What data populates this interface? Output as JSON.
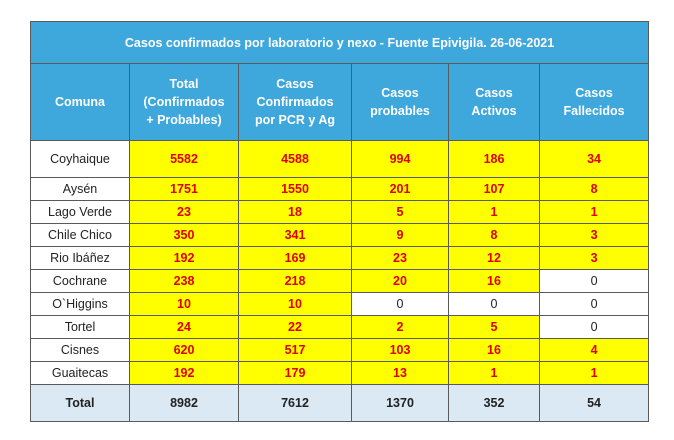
{
  "table": {
    "title": "Casos confirmados por laboratorio y nexo - Fuente Epivigila. 26-06-2021",
    "headers": [
      [
        "Comuna"
      ],
      [
        "Total",
        "(Confirmados",
        "+ Probables)"
      ],
      [
        "Casos",
        "Confirmados",
        "por PCR y Ag"
      ],
      [
        "Casos",
        "probables"
      ],
      [
        "Casos",
        "Activos"
      ],
      [
        "Casos",
        "Fallecidos"
      ]
    ],
    "rows": [
      {
        "comuna": "Coyhaique",
        "values": [
          "5582",
          "4588",
          "994",
          "186",
          "34"
        ]
      },
      {
        "comuna": "Aysén",
        "values": [
          "1751",
          "1550",
          "201",
          "107",
          "8"
        ]
      },
      {
        "comuna": "Lago Verde",
        "values": [
          "23",
          "18",
          "5",
          "1",
          "1"
        ]
      },
      {
        "comuna": "Chile Chico",
        "values": [
          "350",
          "341",
          "9",
          "8",
          "3"
        ]
      },
      {
        "comuna": "Rio Ibáñez",
        "values": [
          "192",
          "169",
          "23",
          "12",
          "3"
        ]
      },
      {
        "comuna": "Cochrane",
        "values": [
          "238",
          "218",
          "20",
          "16",
          "0"
        ]
      },
      {
        "comuna": "O`Higgins",
        "values": [
          "10",
          "10",
          "0",
          "0",
          "0"
        ]
      },
      {
        "comuna": "Tortel",
        "values": [
          "24",
          "22",
          "2",
          "5",
          "0"
        ]
      },
      {
        "comuna": "Cisnes",
        "values": [
          "620",
          "517",
          "103",
          "16",
          "4"
        ]
      },
      {
        "comuna": "Guaitecas",
        "values": [
          "192",
          "179",
          "13",
          "1",
          "1"
        ]
      }
    ],
    "total": {
      "label": "Total",
      "values": [
        "8982",
        "7612",
        "1370",
        "352",
        "54"
      ]
    }
  },
  "colors": {
    "header_bg": "#3ea7dc",
    "highlight_bg": "#ffff00",
    "highlight_text": "#e00000",
    "total_bg": "#dbe9f5"
  }
}
